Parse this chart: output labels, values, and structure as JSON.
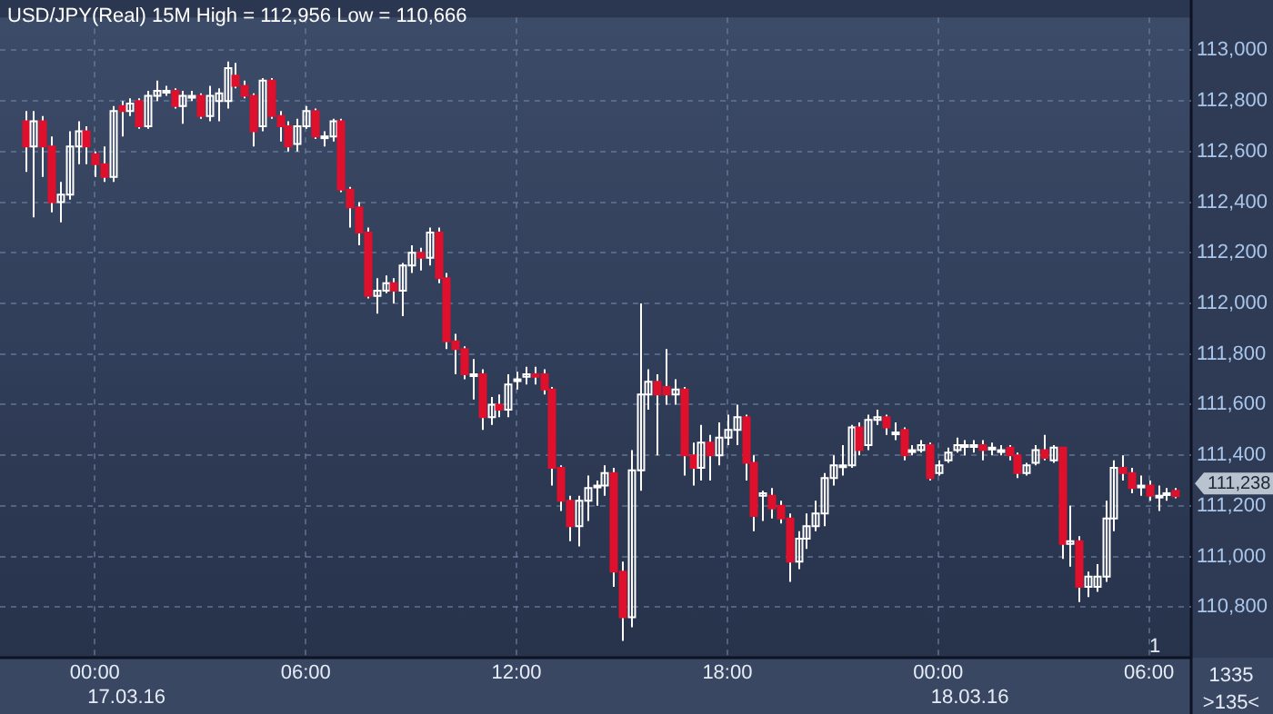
{
  "chart_data": {
    "type": "candlestick",
    "title": "USD/JPY(Real) 15M High = 112,956 Low = 110,666",
    "x": [
      "--03-16T22:00",
      "--03-16T22:15",
      "--03-16T22:30",
      "--03-16T22:45",
      "--03-16T23:00",
      "--03-16T23:15",
      "--03-16T23:30",
      "--03-16T23:45",
      "--03-17T00:00",
      "--03-17T00:15",
      "--03-17T00:30",
      "--03-17T00:45",
      "--03-17T01:00",
      "--03-17T01:15",
      "--03-17T01:30",
      "--03-17T01:45",
      "--03-17T02:00",
      "--03-17T02:15",
      "--03-17T02:30",
      "--03-17T02:45",
      "--03-17T03:00",
      "--03-17T03:15",
      "--03-17T03:30",
      "--03-17T03:45",
      "--03-17T04:00",
      "--03-17T04:15",
      "--03-17T04:30",
      "--03-17T04:45",
      "--03-17T05:00",
      "--03-17T05:15",
      "--03-17T05:30",
      "--03-17T05:45",
      "--03-17T06:00",
      "--03-17T06:15",
      "--03-17T06:30",
      "--03-17T06:45",
      "--03-17T07:00",
      "--03-17T07:15",
      "--03-17T07:30",
      "--03-17T07:45",
      "--03-17T08:00",
      "--03-17T08:15",
      "--03-17T08:30",
      "--03-17T08:45",
      "--03-17T09:00",
      "--03-17T09:15",
      "--03-17T09:30",
      "--03-17T09:45",
      "--03-17T10:00",
      "--03-17T10:15",
      "--03-17T10:30",
      "--03-17T10:45",
      "--03-17T11:00",
      "--03-17T11:15",
      "--03-17T11:30",
      "--03-17T11:45",
      "--03-17T12:00",
      "--03-17T12:15",
      "--03-17T12:30",
      "--03-17T12:45",
      "--03-17T13:00",
      "--03-17T13:15",
      "--03-17T13:30",
      "--03-17T13:45",
      "--03-17T14:00",
      "--03-17T14:15",
      "--03-17T14:30",
      "--03-17T14:45",
      "--03-17T15:00",
      "--03-17T15:15",
      "--03-17T15:30",
      "--03-17T15:45",
      "--03-17T16:00",
      "--03-17T16:15",
      "--03-17T16:30",
      "--03-17T16:45",
      "--03-17T17:00",
      "--03-17T17:15",
      "--03-17T17:30",
      "--03-17T17:45",
      "--03-17T18:00",
      "--03-17T18:15",
      "--03-17T18:30",
      "--03-17T18:45",
      "--03-17T19:00",
      "--03-17T19:15",
      "--03-17T19:30",
      "--03-17T19:45",
      "--03-17T20:00",
      "--03-17T20:15",
      "--03-17T20:30",
      "--03-17T20:45",
      "--03-17T21:00",
      "--03-17T21:15",
      "--03-17T21:30",
      "--03-17T21:45",
      "--03-17T22:00",
      "--03-17T22:15",
      "--03-17T22:30",
      "--03-17T22:45",
      "--03-17T23:00",
      "--03-17T23:15",
      "--03-17T23:30",
      "--03-17T23:45",
      "--03-18T00:00",
      "--03-18T00:15",
      "--03-18T00:30",
      "--03-18T00:45",
      "--03-18T01:00",
      "--03-18T01:15",
      "--03-18T01:30",
      "--03-18T01:45",
      "--03-18T02:00",
      "--03-18T02:15",
      "--03-18T02:30",
      "--03-18T02:45",
      "--03-18T03:00",
      "--03-18T03:15",
      "--03-18T03:30",
      "--03-18T03:45",
      "--03-18T04:00",
      "--03-18T04:15",
      "--03-18T04:30",
      "--03-18T04:45",
      "--03-18T05:00",
      "--03-18T05:15",
      "--03-18T05:30",
      "--03-18T05:45",
      "--03-18T06:00",
      "--03-18T06:15",
      "--03-18T06:30",
      "--03-18T06:45"
    ],
    "ohlc": [
      [
        112720,
        112760,
        112520,
        112620
      ],
      [
        112620,
        112760,
        112340,
        112720
      ],
      [
        112720,
        112740,
        112500,
        112620
      ],
      [
        112620,
        112660,
        112360,
        112400
      ],
      [
        112400,
        112480,
        112320,
        112430
      ],
      [
        112430,
        112680,
        112410,
        112620
      ],
      [
        112620,
        112720,
        112550,
        112680
      ],
      [
        112680,
        112700,
        112550,
        112620
      ],
      [
        112590,
        112600,
        112500,
        112550
      ],
      [
        112550,
        112620,
        112480,
        112500
      ],
      [
        112500,
        112780,
        112480,
        112760
      ],
      [
        112780,
        112800,
        112660,
        112760
      ],
      [
        112760,
        112810,
        112740,
        112790
      ],
      [
        112800,
        112810,
        112690,
        112700
      ],
      [
        112700,
        112840,
        112690,
        112820
      ],
      [
        112820,
        112880,
        112800,
        112840
      ],
      [
        112840,
        112860,
        112820,
        112840
      ],
      [
        112840,
        112850,
        112770,
        112780
      ],
      [
        112780,
        112840,
        112710,
        112820
      ],
      [
        112820,
        112840,
        112800,
        112820
      ],
      [
        112820,
        112830,
        112730,
        112740
      ],
      [
        112740,
        112860,
        112720,
        112820
      ],
      [
        112800,
        112850,
        112720,
        112830
      ],
      [
        112800,
        112956,
        112770,
        112930
      ],
      [
        112900,
        112950,
        112850,
        112860
      ],
      [
        112860,
        112880,
        112810,
        112820
      ],
      [
        112820,
        112830,
        112620,
        112680
      ],
      [
        112700,
        112890,
        112680,
        112880
      ],
      [
        112880,
        112890,
        112730,
        112740
      ],
      [
        112740,
        112760,
        112640,
        112700
      ],
      [
        112700,
        112720,
        112600,
        112620
      ],
      [
        112630,
        112730,
        112600,
        112700
      ],
      [
        112700,
        112780,
        112690,
        112760
      ],
      [
        112760,
        112770,
        112650,
        112660
      ],
      [
        112660,
        112680,
        112620,
        112660
      ],
      [
        112660,
        112730,
        112640,
        112720
      ],
      [
        112720,
        112730,
        112440,
        112450
      ],
      [
        112450,
        112460,
        112300,
        112380
      ],
      [
        112380,
        112400,
        112230,
        112280
      ],
      [
        112280,
        112300,
        112020,
        112030
      ],
      [
        112030,
        112100,
        111960,
        112050
      ],
      [
        112050,
        112110,
        112040,
        112080
      ],
      [
        112080,
        112100,
        112000,
        112050
      ],
      [
        112050,
        112160,
        111950,
        112150
      ],
      [
        112150,
        112230,
        112120,
        112200
      ],
      [
        112200,
        112220,
        112130,
        112180
      ],
      [
        112180,
        112300,
        112150,
        112280
      ],
      [
        112280,
        112300,
        112080,
        112100
      ],
      [
        112100,
        112120,
        111820,
        111850
      ],
      [
        111850,
        111880,
        111720,
        111820
      ],
      [
        111820,
        111830,
        111700,
        111720
      ],
      [
        111720,
        111780,
        111620,
        111720
      ],
      [
        111720,
        111740,
        111500,
        111550
      ],
      [
        111550,
        111630,
        111520,
        111600
      ],
      [
        111600,
        111640,
        111550,
        111580
      ],
      [
        111580,
        111720,
        111550,
        111680
      ],
      [
        111700,
        111730,
        111660,
        111700
      ],
      [
        111710,
        111750,
        111680,
        111720
      ],
      [
        111720,
        111750,
        111680,
        111710
      ],
      [
        111720,
        111740,
        111640,
        111660
      ],
      [
        111660,
        111670,
        111280,
        111350
      ],
      [
        111350,
        111360,
        111180,
        111220
      ],
      [
        111220,
        111240,
        111060,
        111120
      ],
      [
        111120,
        111240,
        111040,
        111220
      ],
      [
        111220,
        111320,
        111140,
        111270
      ],
      [
        111280,
        111300,
        111200,
        111280
      ],
      [
        111280,
        111360,
        111240,
        111330
      ],
      [
        111330,
        111350,
        110880,
        110940
      ],
      [
        110940,
        110980,
        110666,
        110760
      ],
      [
        110760,
        111420,
        110720,
        111340
      ],
      [
        111340,
        112000,
        111260,
        111640
      ],
      [
        111640,
        111740,
        111580,
        111690
      ],
      [
        111690,
        111720,
        111400,
        111640
      ],
      [
        111670,
        111820,
        111600,
        111640
      ],
      [
        111640,
        111700,
        111600,
        111660
      ],
      [
        111660,
        111670,
        111320,
        111400
      ],
      [
        111400,
        111450,
        111280,
        111350
      ],
      [
        111350,
        111520,
        111300,
        111450
      ],
      [
        111450,
        111480,
        111300,
        111400
      ],
      [
        111400,
        111530,
        111360,
        111470
      ],
      [
        111470,
        111560,
        111440,
        111500
      ],
      [
        111500,
        111600,
        111440,
        111550
      ],
      [
        111550,
        111560,
        111300,
        111370
      ],
      [
        111370,
        111400,
        111100,
        111160
      ],
      [
        111240,
        111260,
        111140,
        111250
      ],
      [
        111240,
        111270,
        111150,
        111190
      ],
      [
        111200,
        111220,
        111130,
        111150
      ],
      [
        111150,
        111170,
        110900,
        110980
      ],
      [
        110980,
        111100,
        110950,
        111070
      ],
      [
        111070,
        111170,
        111030,
        111120
      ],
      [
        111120,
        111220,
        111100,
        111170
      ],
      [
        111170,
        111330,
        111120,
        111310
      ],
      [
        111310,
        111400,
        111280,
        111360
      ],
      [
        111360,
        111440,
        111320,
        111360
      ],
      [
        111360,
        111520,
        111350,
        111510
      ],
      [
        111510,
        111530,
        111400,
        111420
      ],
      [
        111440,
        111560,
        111420,
        111540
      ],
      [
        111540,
        111580,
        111520,
        111550
      ],
      [
        111550,
        111560,
        111480,
        111510
      ],
      [
        111490,
        111530,
        111460,
        111490
      ],
      [
        111500,
        111510,
        111380,
        111400
      ],
      [
        111420,
        111440,
        111400,
        111420
      ],
      [
        111420,
        111460,
        111410,
        111440
      ],
      [
        111440,
        111450,
        111300,
        111310
      ],
      [
        111330,
        111380,
        111320,
        111360
      ],
      [
        111380,
        111430,
        111370,
        111410
      ],
      [
        111420,
        111470,
        111410,
        111440
      ],
      [
        111440,
        111460,
        111400,
        111440
      ],
      [
        111440,
        111460,
        111410,
        111440
      ],
      [
        111440,
        111460,
        111380,
        111420
      ],
      [
        111430,
        111450,
        111400,
        111430
      ],
      [
        111420,
        111440,
        111400,
        111420
      ],
      [
        111430,
        111440,
        111380,
        111400
      ],
      [
        111400,
        111410,
        111310,
        111330
      ],
      [
        111330,
        111370,
        111320,
        111360
      ],
      [
        111370,
        111440,
        111360,
        111420
      ],
      [
        111420,
        111480,
        111380,
        111390
      ],
      [
        111380,
        111440,
        111370,
        111430
      ],
      [
        111430,
        111430,
        110990,
        111050
      ],
      [
        111050,
        111200,
        110960,
        111060
      ],
      [
        111060,
        111080,
        110820,
        110880
      ],
      [
        110880,
        110940,
        110840,
        110920
      ],
      [
        110880,
        110970,
        110860,
        110920
      ],
      [
        110920,
        111220,
        110900,
        111150
      ],
      [
        111150,
        111380,
        111100,
        111350
      ],
      [
        111350,
        111400,
        111300,
        111330
      ],
      [
        111330,
        111350,
        111250,
        111270
      ],
      [
        111280,
        111320,
        111240,
        111280
      ],
      [
        111280,
        111300,
        111220,
        111240
      ],
      [
        111240,
        111280,
        111180,
        111240
      ],
      [
        111250,
        111270,
        111220,
        111250
      ],
      [
        111260,
        111270,
        111230,
        111238
      ]
    ],
    "color": "#ffffff",
    "colors": [
      "#e0102c",
      "#ffffff",
      "#e0102c",
      "#e0102c",
      "#ffffff",
      "#ffffff",
      "#ffffff",
      "#e0102c",
      "#e0102c",
      "#e0102c",
      "#ffffff",
      "#e0102c",
      "#ffffff",
      "#e0102c",
      "#ffffff",
      "#ffffff",
      "#ffffff",
      "#e0102c",
      "#ffffff",
      "#ffffff",
      "#e0102c",
      "#ffffff",
      "#ffffff",
      "#ffffff",
      "#e0102c",
      "#e0102c",
      "#e0102c",
      "#ffffff",
      "#e0102c",
      "#e0102c",
      "#e0102c",
      "#ffffff",
      "#ffffff",
      "#e0102c",
      "#ffffff",
      "#ffffff",
      "#e0102c",
      "#e0102c",
      "#e0102c",
      "#e0102c",
      "#ffffff",
      "#ffffff",
      "#e0102c",
      "#ffffff",
      "#ffffff",
      "#e0102c",
      "#ffffff",
      "#e0102c",
      "#e0102c",
      "#e0102c",
      "#e0102c",
      "#ffffff",
      "#e0102c",
      "#ffffff",
      "#e0102c",
      "#ffffff",
      "#ffffff",
      "#ffffff",
      "#e0102c",
      "#e0102c",
      "#e0102c",
      "#e0102c",
      "#e0102c",
      "#ffffff",
      "#ffffff",
      "#ffffff",
      "#ffffff",
      "#e0102c",
      "#e0102c",
      "#ffffff",
      "#ffffff",
      "#ffffff",
      "#e0102c",
      "#e0102c",
      "#ffffff",
      "#e0102c",
      "#e0102c",
      "#ffffff",
      "#e0102c",
      "#ffffff",
      "#ffffff",
      "#ffffff",
      "#e0102c",
      "#e0102c",
      "#ffffff",
      "#e0102c",
      "#e0102c",
      "#e0102c",
      "#ffffff",
      "#ffffff",
      "#ffffff",
      "#ffffff",
      "#ffffff",
      "#ffffff",
      "#ffffff",
      "#e0102c",
      "#ffffff",
      "#ffffff",
      "#e0102c",
      "#ffffff",
      "#e0102c",
      "#ffffff",
      "#ffffff",
      "#e0102c",
      "#ffffff",
      "#ffffff",
      "#ffffff",
      "#ffffff",
      "#ffffff",
      "#e0102c",
      "#ffffff",
      "#ffffff",
      "#e0102c",
      "#e0102c",
      "#ffffff",
      "#ffffff",
      "#e0102c",
      "#ffffff",
      "#e0102c",
      "#ffffff",
      "#e0102c",
      "#ffffff",
      "#ffffff",
      "#ffffff",
      "#ffffff",
      "#e0102c",
      "#e0102c",
      "#ffffff",
      "#e0102c",
      "#ffffff",
      "#ffffff",
      "#e0102c"
    ],
    "xlim": [
      "--03-16T21:18",
      "--03-18T07:12"
    ],
    "xticks": [
      {
        "value": "--03-17T00:00",
        "label": "00:00"
      },
      {
        "value": "--03-17T06:00",
        "label": "06:00"
      },
      {
        "value": "--03-17T12:00",
        "label": "12:00"
      },
      {
        "value": "--03-17T18:00",
        "label": "18:00"
      },
      {
        "value": "--03-18T00:00",
        "label": "00:00"
      },
      {
        "value": "--03-18T06:00",
        "label": "06:00"
      }
    ],
    "ylim": [
      110600,
      113130
    ],
    "yticks": [
      {
        "value": 110800,
        "label": "110,800"
      },
      {
        "value": 111000,
        "label": "111,000"
      },
      {
        "value": 111200,
        "label": "111,200"
      },
      {
        "value": 111400,
        "label": "111,400"
      },
      {
        "value": 111600,
        "label": "111,600"
      },
      {
        "value": 111800,
        "label": "111,800"
      },
      {
        "value": 112000,
        "label": "112,000"
      },
      {
        "value": 112200,
        "label": "112,200"
      },
      {
        "value": 112400,
        "label": "112,400"
      },
      {
        "value": 112600,
        "label": "112,600"
      },
      {
        "value": 112800,
        "label": "112,800"
      },
      {
        "value": 113000,
        "label": "113,000"
      }
    ],
    "grid": true,
    "legend": false,
    "annotations": [
      "17.03.16",
      "18.03.16",
      "111,238",
      "1",
      "1335",
      ">135<"
    ]
  }
}
